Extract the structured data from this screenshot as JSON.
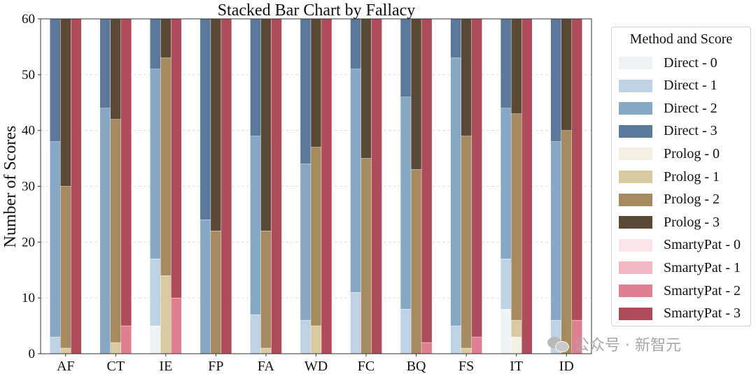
{
  "chart_data": {
    "type": "bar",
    "stacked": true,
    "grouped": true,
    "title": "Stacked Bar Chart by Fallacy",
    "xlabel": "",
    "ylabel": "Number of Scores",
    "ylim": [
      0,
      60
    ],
    "yticks": [
      "0",
      "10",
      "20",
      "30",
      "40",
      "50",
      "60"
    ],
    "grid": "horizontal dashed",
    "categories": [
      "AF",
      "CT",
      "IE",
      "FP",
      "FA",
      "WD",
      "FC",
      "BQ",
      "FS",
      "IT",
      "ID"
    ],
    "legend": {
      "title": "Method and Score",
      "placement": "right"
    },
    "methods": [
      {
        "name": "Direct",
        "series": [
          {
            "name": "Direct - 0",
            "color": "#eef4f6",
            "values": [
              0,
              0,
              5,
              0,
              0,
              0,
              0,
              0,
              0,
              8,
              0
            ]
          },
          {
            "name": "Direct - 1",
            "color": "#bdd2e4",
            "values": [
              3,
              0,
              12,
              0,
              7,
              6,
              11,
              8,
              5,
              9,
              6
            ]
          },
          {
            "name": "Direct - 2",
            "color": "#86a8c4",
            "values": [
              35,
              44,
              34,
              24,
              32,
              28,
              40,
              38,
              48,
              27,
              32
            ]
          },
          {
            "name": "Direct - 3",
            "color": "#5a7899",
            "values": [
              22,
              16,
              9,
              36,
              21,
              26,
              9,
              14,
              7,
              16,
              22
            ]
          }
        ]
      },
      {
        "name": "Prolog",
        "series": [
          {
            "name": "Prolog - 0",
            "color": "#f5f0e4",
            "values": [
              0,
              0,
              0,
              0,
              0,
              0,
              0,
              0,
              0,
              3,
              0
            ]
          },
          {
            "name": "Prolog - 1",
            "color": "#d8c9a0",
            "values": [
              1,
              2,
              14,
              0,
              1,
              5,
              0,
              0,
              1,
              3,
              0
            ]
          },
          {
            "name": "Prolog - 2",
            "color": "#a68b60",
            "values": [
              29,
              40,
              39,
              22,
              21,
              32,
              35,
              33,
              38,
              37,
              40
            ]
          },
          {
            "name": "Prolog - 3",
            "color": "#5a4a35",
            "values": [
              30,
              18,
              7,
              38,
              38,
              23,
              25,
              27,
              21,
              17,
              20
            ]
          }
        ]
      },
      {
        "name": "SmartyPat",
        "series": [
          {
            "name": "SmartyPat - 0",
            "color": "#fbe5ea",
            "values": [
              0,
              0,
              0,
              0,
              0,
              0,
              0,
              0,
              0,
              0,
              0
            ]
          },
          {
            "name": "SmartyPat - 1",
            "color": "#f3b6c3",
            "values": [
              0,
              0,
              0,
              0,
              0,
              0,
              0,
              0,
              0,
              0,
              0
            ]
          },
          {
            "name": "SmartyPat - 2",
            "color": "#e07f92",
            "values": [
              0,
              5,
              10,
              0,
              0,
              0,
              0,
              2,
              3,
              0,
              6
            ]
          },
          {
            "name": "SmartyPat - 3",
            "color": "#ae4c5c",
            "values": [
              60,
              55,
              50,
              60,
              60,
              60,
              60,
              58,
              57,
              60,
              54
            ]
          }
        ]
      }
    ]
  },
  "watermark": {
    "text": "公众号 · 新智元"
  }
}
